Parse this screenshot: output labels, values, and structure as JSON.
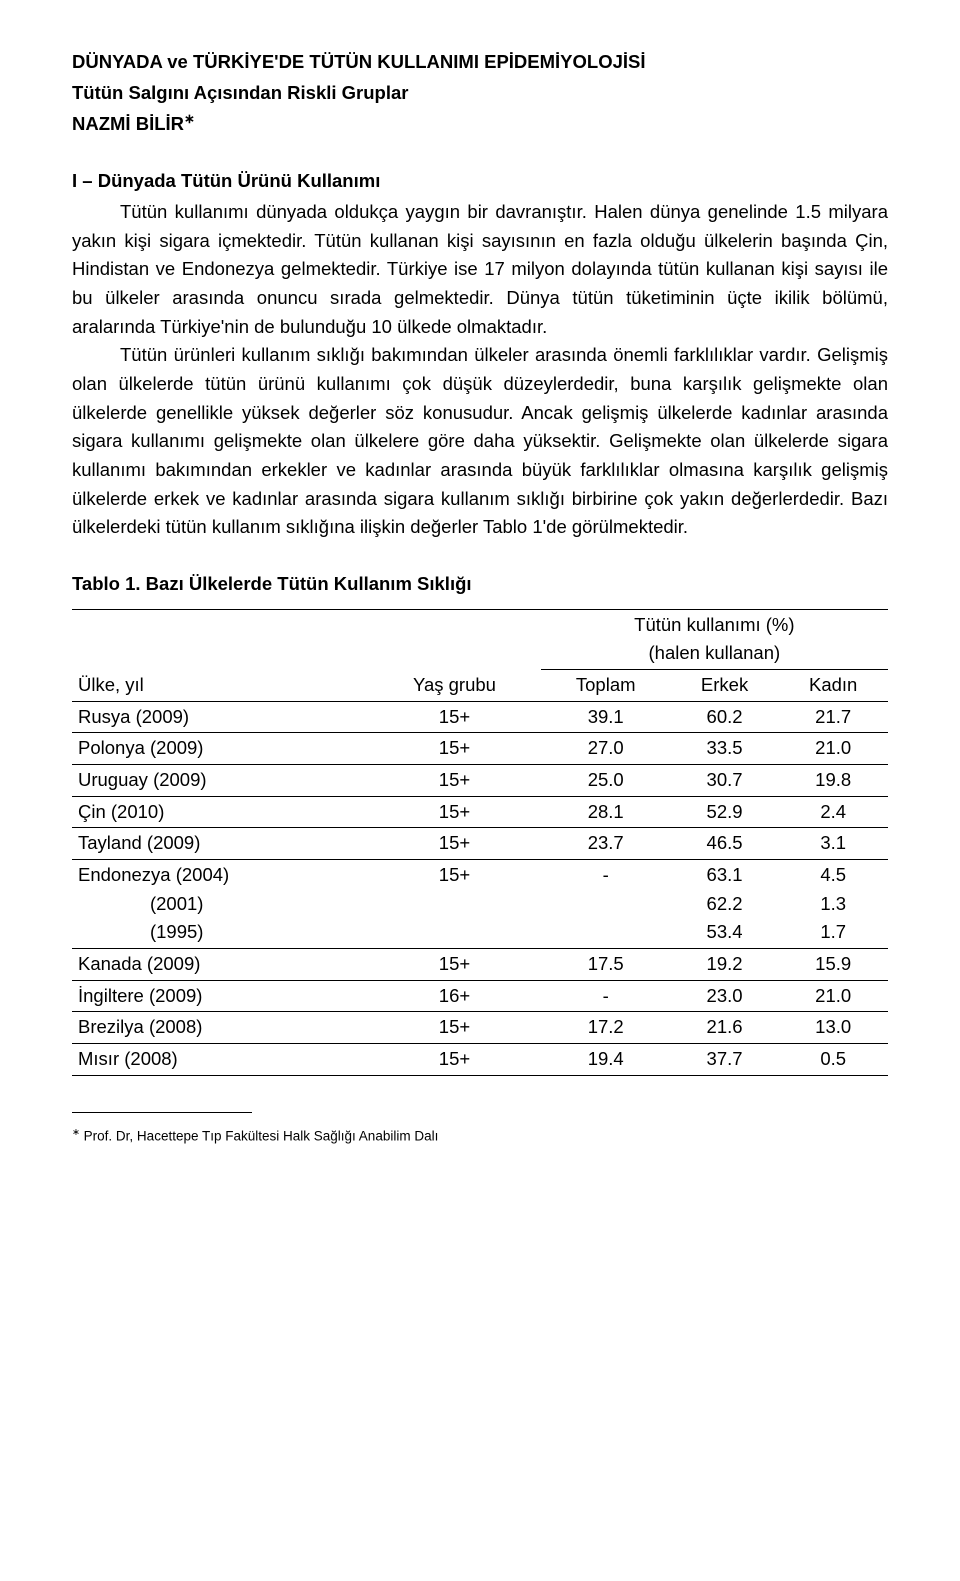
{
  "header": {
    "title": "DÜNYADA ve TÜRKİYE'DE TÜTÜN KULLANIMI EPİDEMİYOLOJİSİ",
    "subtitle": "Tütün Salgını Açısından Riskli Gruplar",
    "author": "NAZMİ BİLİR",
    "author_mark": "∗"
  },
  "section1": {
    "heading": "I – Dünyada Tütün Ürünü Kullanımı",
    "para1_first": "Tütün kullanımı dünyada oldukça yaygın bir davranıştır. Halen dünya genelinde 1.5 milyara yakın kişi sigara içmektedir. Tütün kullanan kişi sayısının en fazla olduğu ülkelerin başında Çin, Hindistan ve Endonezya gelmektedir. Türkiye ise 17 milyon dolayında tütün kullanan kişi sayısı ile bu ülkeler arasında onuncu sırada gelmektedir. Dünya tütün tüketiminin üçte ikilik bölümü, aralarında Türkiye'nin de bulunduğu 10 ülkede olmaktadır.",
    "para2": "Tütün ürünleri kullanım sıklığı bakımından ülkeler arasında önemli farklılıklar vardır. Gelişmiş olan ülkelerde tütün ürünü kullanımı çok düşük düzeylerdedir, buna karşılık gelişmekte olan ülkelerde genellikle yüksek değerler söz konusudur. Ancak gelişmiş ülkelerde kadınlar arasında sigara kullanımı gelişmekte olan ülkelere göre daha yüksektir. Gelişmekte olan ülkelerde sigara kullanımı bakımından erkekler ve kadınlar arasında büyük farklılıklar olmasına karşılık gelişmiş ülkelerde erkek ve kadınlar arasında sigara kullanım sıklığı birbirine çok yakın değerlerdedir. Bazı ülkelerdeki tütün kullanım sıklığına ilişkin değerler Tablo 1'de görülmektedir."
  },
  "table": {
    "caption": "Tablo 1. Bazı Ülkelerde Tütün Kullanım Sıklığı",
    "group_header": "Tütün kullanımı (%)\n(halen kullanan)",
    "col_ulke": "Ülke, yıl",
    "col_yas": "Yaş grubu",
    "col_toplam": "Toplam",
    "col_erkek": "Erkek",
    "col_kadin": "Kadın",
    "rows": [
      {
        "ulke": "Rusya (2009)",
        "yas": "15+",
        "toplam": "39.1",
        "erkek": "60.2",
        "kadin": "21.7"
      },
      {
        "ulke": "Polonya (2009)",
        "yas": "15+",
        "toplam": "27.0",
        "erkek": "33.5",
        "kadin": "21.0"
      },
      {
        "ulke": "Uruguay (2009)",
        "yas": "15+",
        "toplam": "25.0",
        "erkek": "30.7",
        "kadin": "19.8"
      },
      {
        "ulke": "Çin (2010)",
        "yas": "15+",
        "toplam": "28.1",
        "erkek": "52.9",
        "kadin": "2.4"
      },
      {
        "ulke": "Tayland (2009)",
        "yas": "15+",
        "toplam": "23.7",
        "erkek": "46.5",
        "kadin": "3.1"
      },
      {
        "ulke": "Endonezya (2004)\n              (2001)\n              (1995)",
        "yas": "15+",
        "toplam": "-",
        "erkek": "63.1\n62.2\n53.4",
        "kadin": "4.5\n1.3\n1.7"
      },
      {
        "ulke": "Kanada (2009)",
        "yas": "15+",
        "toplam": "17.5",
        "erkek": "19.2",
        "kadin": "15.9"
      },
      {
        "ulke": "İngiltere (2009)",
        "yas": "16+",
        "toplam": "-",
        "erkek": "23.0",
        "kadin": "21.0"
      },
      {
        "ulke": "Brezilya (2008)",
        "yas": "15+",
        "toplam": "17.2",
        "erkek": "21.6",
        "kadin": "13.0"
      },
      {
        "ulke": "Mısır (2008)",
        "yas": "15+",
        "toplam": "19.4",
        "erkek": "37.7",
        "kadin": "0.5"
      }
    ]
  },
  "footnote": {
    "mark": "∗",
    "text": " Prof. Dr, Hacettepe Tıp Fakültesi Halk Sağlığı Anabilim Dalı"
  }
}
